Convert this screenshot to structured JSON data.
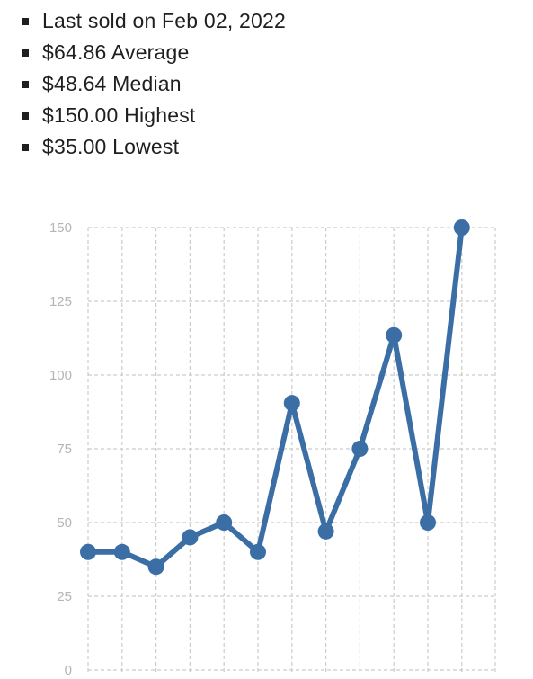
{
  "stats": [
    {
      "label": "Last sold on Feb 02, 2022"
    },
    {
      "label": "$64.86 Average"
    },
    {
      "label": "$48.64 Median"
    },
    {
      "label": "$150.00 Highest"
    },
    {
      "label": "$35.00 Lowest"
    }
  ],
  "chart_data": {
    "type": "line",
    "title": "",
    "xlabel": "",
    "ylabel": "",
    "ylim": [
      0,
      150
    ],
    "yticks": [
      "0",
      "25",
      "50",
      "75",
      "100",
      "125",
      "150"
    ],
    "grid": true,
    "line_color": "#3a6ea5",
    "grid_color": "#cccccc",
    "tick_color": "#b5b5b5",
    "series": [
      {
        "values": [
          40,
          40,
          35,
          45,
          50,
          40,
          90.5,
          47,
          75,
          113.5,
          50,
          150
        ]
      }
    ]
  }
}
